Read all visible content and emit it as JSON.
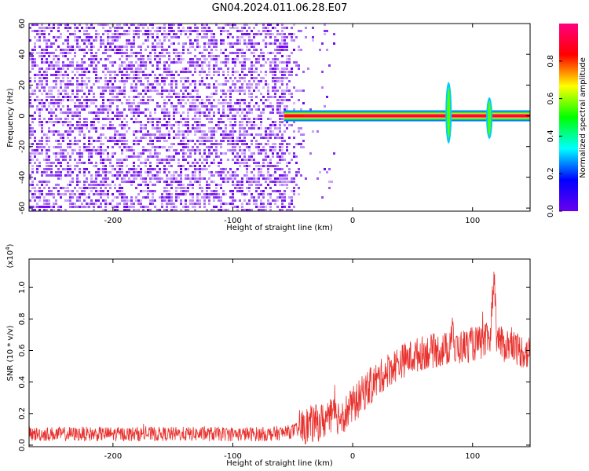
{
  "figure_title": "GN04.2024.011.06.28.E07",
  "colors": {
    "snr_line": "#e8302c",
    "noise": "#6a00ee",
    "axis": "#000000"
  },
  "chart_data": [
    {
      "type": "heatmap",
      "title": "GN04.2024.011.06.28.E07",
      "xlabel": "Height of straight line (km)",
      "ylabel": "Frequency (Hz)",
      "xlim": [
        -270,
        148
      ],
      "ylim": [
        -62,
        60
      ],
      "x_ticks": [
        "-200",
        "-100",
        "0",
        "100"
      ],
      "y_ticks": [
        "60",
        "40",
        "20",
        "0",
        "-20",
        "-40",
        "-60"
      ],
      "colorbar": {
        "label": "Normalized spectral amplitude",
        "range": [
          0,
          1
        ],
        "ticks": [
          "0.0",
          "0.2",
          "0.4",
          "0.6",
          "0.8"
        ],
        "colormap": [
          "#6a00ee",
          "#0000ff",
          "#00ffff",
          "#00ff00",
          "#ffff00",
          "#ff0000",
          "#ff0080"
        ]
      },
      "regions": [
        {
          "name": "broadband noise",
          "x_range": [
            -270,
            -40
          ],
          "y_range": [
            -62,
            60
          ],
          "amplitude": 0.05
        },
        {
          "name": "carrier line",
          "x_range": [
            -60,
            148
          ],
          "frequency": 0,
          "amplitude": 0.95
        }
      ],
      "features": [
        {
          "name": "spike",
          "x": 80,
          "y_range": [
            -18,
            22
          ]
        },
        {
          "name": "spike",
          "x": 114,
          "y_range": [
            -15,
            12
          ]
        }
      ]
    },
    {
      "type": "line",
      "title": "",
      "xlabel": "Height of straight line (km)",
      "ylabel": "SNR (10 * v/v)",
      "y_multiplier_label": "(x10",
      "y_multiplier_exp": "4",
      "y_multiplier_close": ")",
      "xlim": [
        -270,
        148
      ],
      "ylim": [
        -0.01,
        1.18
      ],
      "x_ticks": [
        "-200",
        "-100",
        "0",
        "100"
      ],
      "y_ticks": [
        "0.0",
        "0.2",
        "0.4",
        "0.6",
        "0.8",
        "1.0"
      ],
      "series": [
        {
          "x": [
            -270,
            -200,
            -150,
            -100,
            -70,
            -55,
            -45,
            -40,
            -35,
            -30,
            -25,
            -20,
            -15,
            -10,
            -5,
            0,
            5,
            10,
            20,
            30,
            40,
            50,
            60,
            70,
            80,
            84,
            85,
            86,
            90,
            100,
            110,
            115,
            118,
            120,
            125,
            130,
            140,
            148
          ],
          "values": [
            0.07,
            0.07,
            0.07,
            0.07,
            0.07,
            0.08,
            0.1,
            0.12,
            0.13,
            0.14,
            0.15,
            0.17,
            0.18,
            0.19,
            0.21,
            0.25,
            0.29,
            0.34,
            0.41,
            0.48,
            0.53,
            0.56,
            0.59,
            0.6,
            0.61,
            0.8,
            0.45,
            0.62,
            0.62,
            0.64,
            0.65,
            0.7,
            1.12,
            0.7,
            0.63,
            0.64,
            0.6,
            0.58
          ]
        }
      ]
    }
  ]
}
